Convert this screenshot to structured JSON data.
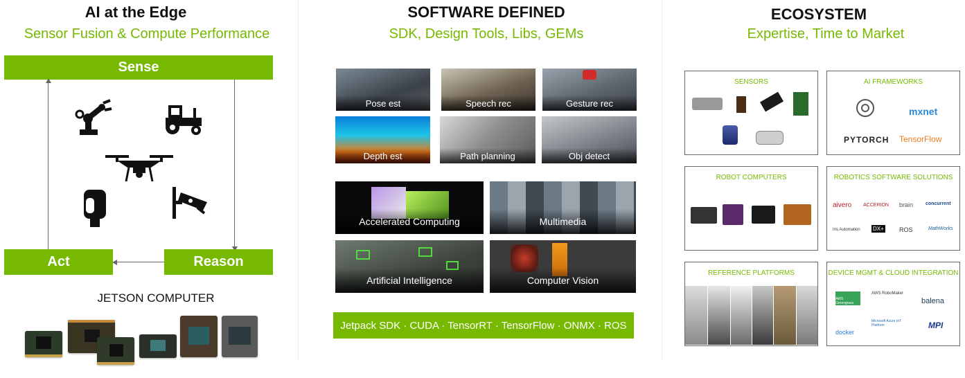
{
  "columns": {
    "edge": {
      "title": "AI at the Edge",
      "subtitle": "Sensor Fusion & Compute Performance"
    },
    "software": {
      "title": "SOFTWARE DEFINED",
      "subtitle": "SDK, Design Tools, Libs, GEMs"
    },
    "ecosystem": {
      "title": "ECOSYSTEM",
      "subtitle": "Expertise, Time to Market"
    }
  },
  "cycle": {
    "sense": "Sense",
    "act": "Act",
    "reason": "Reason"
  },
  "sensor_icons": [
    "robot-arm-icon",
    "tractor-icon",
    "drone-icon",
    "camera-icon",
    "security-camera-icon"
  ],
  "jetson": {
    "label": "JETSON COMPUTER"
  },
  "software": {
    "small_tiles": [
      "Pose est",
      "Speech rec",
      "Gesture rec",
      "Depth est",
      "Path planning",
      "Obj detect"
    ],
    "big_tiles": [
      "Accelerated Computing",
      "Multimedia",
      "Artificial Intelligence",
      "Computer Vision"
    ],
    "sdk_bar": "Jetpack SDK · CUDA · TensorRT · TensorFlow · ONMX · ROS"
  },
  "ecosystem": {
    "sensors": {
      "title": "SENSORS"
    },
    "frameworks": {
      "title": "AI FRAMEWORKS",
      "logos": [
        "mxnet",
        "PYTORCH",
        "TensorFlow"
      ]
    },
    "robot_computers": {
      "title": "ROBOT COMPUTERS"
    },
    "robotics_software": {
      "title": "ROBOTICS SOFTWARE SOLUTIONS",
      "logos": [
        "aivero",
        "ACCERION",
        "brain",
        "concurrent",
        "Iris Automation",
        "DX+",
        "ROS",
        "MathWorks"
      ]
    },
    "reference_platforms": {
      "title": "REFERENCE PLATFORMS"
    },
    "device_mgmt": {
      "title": "DEVICE MGMT & CLOUD INTEGRATION",
      "logos": [
        "AWS Greengrass",
        "AWS RoboMaker",
        "balena",
        "docker",
        "Microsoft Azure IoT Platform",
        "MPI"
      ]
    }
  },
  "colors": {
    "accent": "#76b900",
    "text": "#111111"
  }
}
